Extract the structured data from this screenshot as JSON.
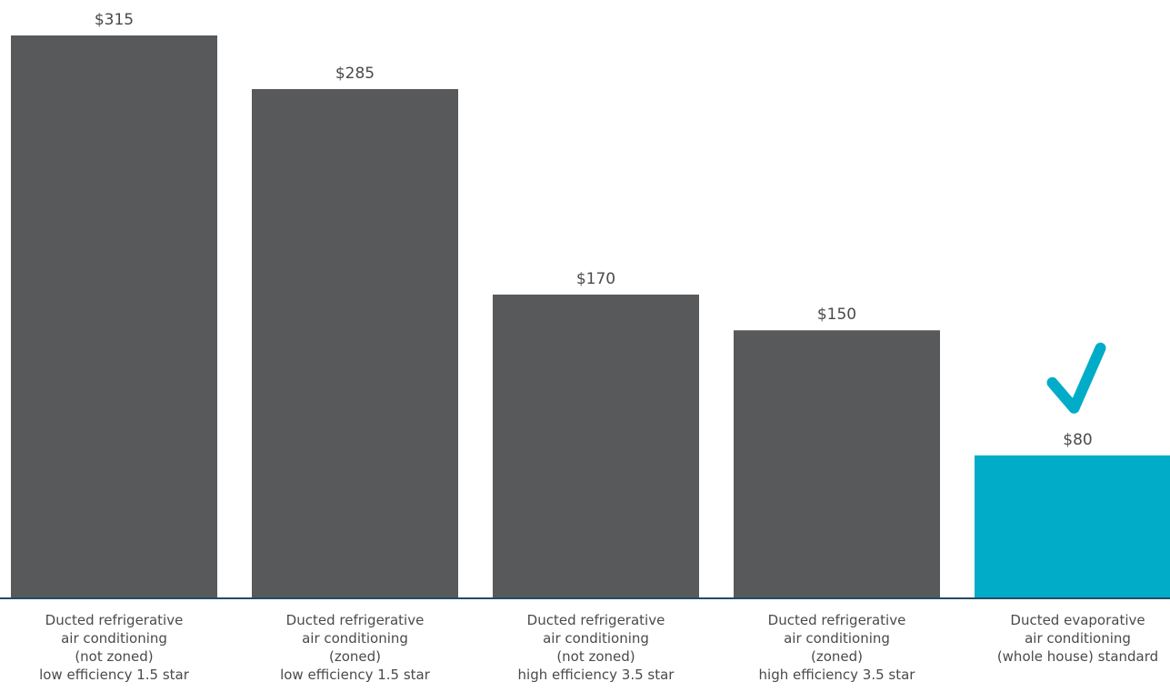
{
  "chart_data": {
    "type": "bar",
    "categories": [
      [
        "Ducted refrigerative",
        "air conditioning",
        "(not zoned)",
        "low efficiency 1.5 star"
      ],
      [
        "Ducted refrigerative",
        "air conditioning",
        "(zoned)",
        "low efficiency 1.5 star"
      ],
      [
        "Ducted refrigerative",
        "air conditioning",
        "(not zoned)",
        "high efficiency 3.5 star"
      ],
      [
        "Ducted refrigerative",
        "air conditioning",
        "(zoned)",
        "high efficiency 3.5 star"
      ],
      [
        "Ducted evaporative",
        "air conditioning",
        "(whole house) standard"
      ]
    ],
    "values": [
      315,
      285,
      170,
      150,
      80
    ],
    "value_labels": [
      "$315",
      "$285",
      "$170",
      "$150",
      "$80"
    ],
    "bar_colors": [
      "#58595b",
      "#58595b",
      "#58595b",
      "#58595b",
      "#00acc8"
    ],
    "highlighted_index": 4,
    "highlight_icon": "checkmark-icon",
    "title": "",
    "xlabel": "",
    "ylabel": "",
    "ylim": [
      0,
      315
    ],
    "grid": false,
    "legend": "none"
  },
  "colors": {
    "bar": "#58595b",
    "highlight": "#00acc8",
    "baseline": "#1f4e66",
    "text": "#4a4a4a"
  }
}
